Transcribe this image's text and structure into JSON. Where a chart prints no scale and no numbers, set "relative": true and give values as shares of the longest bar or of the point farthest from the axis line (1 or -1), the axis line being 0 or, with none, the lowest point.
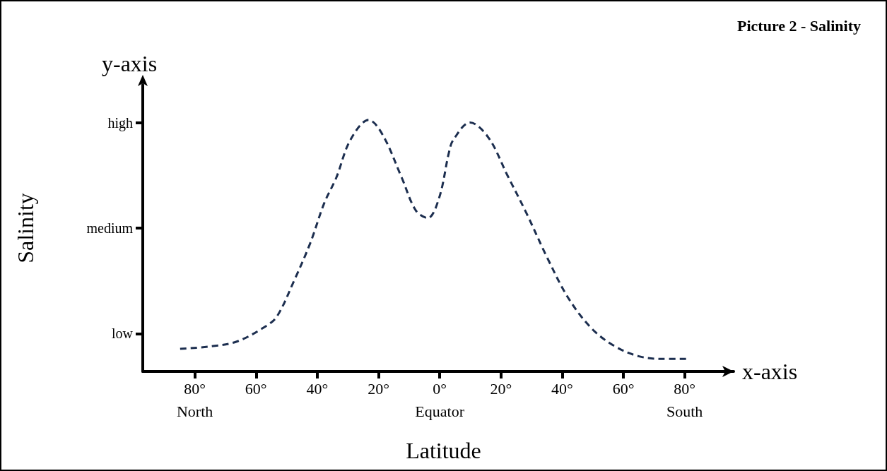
{
  "chart_data": {
    "type": "line",
    "title": "Picture 2 - Salinity",
    "xlabel": "Latitude",
    "ylabel": "Salinity",
    "relative": true,
    "annotations": [
      "x-axis",
      "y-axis",
      "low",
      "medium",
      "high"
    ],
    "x": [
      -84.8,
      -74.5,
      -66,
      -56.8,
      -53.1,
      -47.6,
      -42.3,
      -37.7,
      -33.8,
      -29.2,
      -23.2,
      -18.6,
      -12.4,
      -7.8,
      -3.9,
      -0.2,
      3.0,
      4.4,
      9.9,
      15.9,
      22.1,
      28.3,
      35.2,
      42.1,
      49.7,
      57.2,
      65.1,
      72.6,
      80.7
    ],
    "series": [
      {
        "color": "#1c2e4f",
        "values": [
          0.09,
          0.1,
          0.12,
          0.18,
          0.22,
          0.36,
          0.51,
          0.67,
          0.77,
          0.92,
          1,
          0.94,
          0.77,
          0.64,
          0.61,
          0.69,
          0.87,
          0.92,
          0.99,
          0.93,
          0.78,
          0.63,
          0.45,
          0.29,
          0.17,
          0.1,
          0.06,
          0.05,
          0.05
        ]
      }
    ],
    "xlim": [
      -97,
      96
    ],
    "xticks": [
      {
        "value": -80,
        "label": "80°\nNorth"
      },
      {
        "value": -60,
        "label": "60°"
      },
      {
        "value": -40,
        "label": "40°"
      },
      {
        "value": -20,
        "label": "20°"
      },
      {
        "value": 0,
        "label": "0°\nEquator"
      },
      {
        "value": 20,
        "label": "20°"
      },
      {
        "value": 40,
        "label": "40°"
      },
      {
        "value": 60,
        "label": "60°"
      },
      {
        "value": 80,
        "label": "80°\nSouth"
      }
    ],
    "grid": false,
    "marker": "none",
    "line_style": "dashed"
  }
}
